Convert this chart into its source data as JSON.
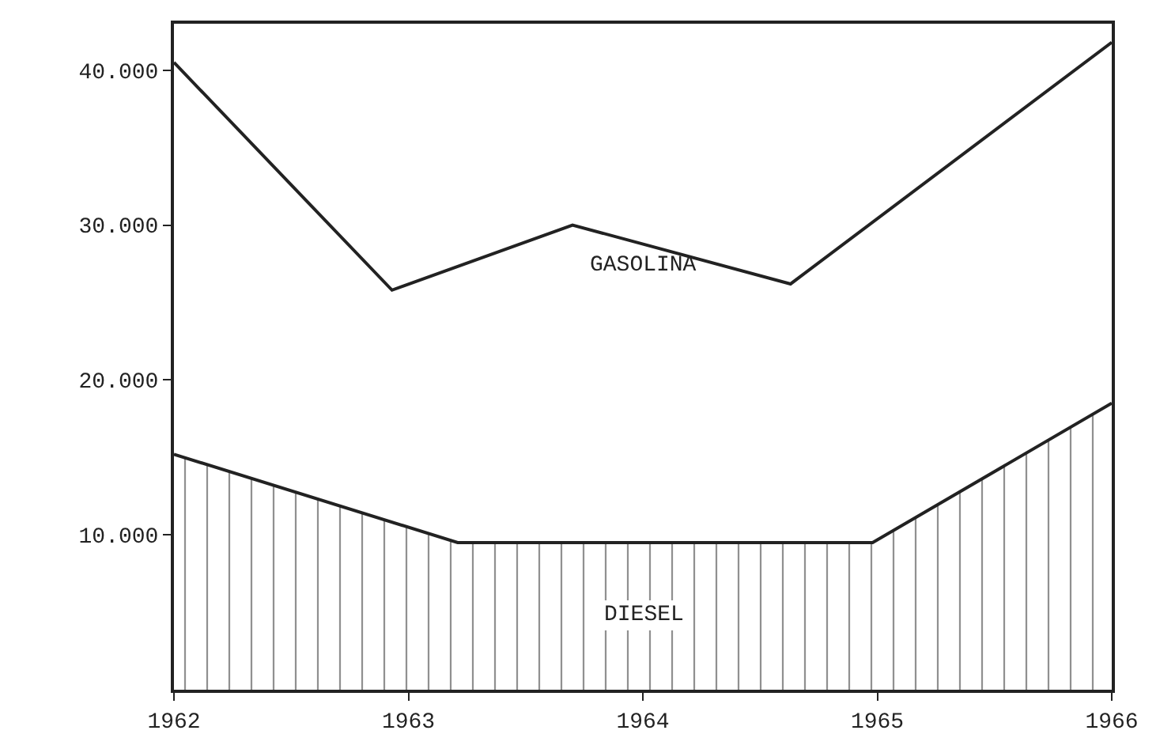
{
  "chart_data": {
    "type": "line",
    "xlim": [
      1962,
      1966
    ],
    "ylim": [
      0,
      43000
    ],
    "xticks": [
      1962,
      1963,
      1964,
      1965,
      1966
    ],
    "yticks": [
      {
        "value": 10000,
        "label": "10.000"
      },
      {
        "value": 20000,
        "label": "20.000"
      },
      {
        "value": 30000,
        "label": "30.000"
      },
      {
        "value": 40000,
        "label": "40.000"
      }
    ],
    "legend": false,
    "marker": "none",
    "line_style": "solid",
    "series": [
      {
        "name": "GASOLINA",
        "color": "#222222",
        "x": [
          1962,
          1962.93,
          1963.7,
          1964.63,
          1966
        ],
        "values": [
          40500,
          25800,
          30000,
          26200,
          41800
        ]
      },
      {
        "name": "DIESEL",
        "type": "area",
        "color": "#222222",
        "x": [
          1962,
          1963.21,
          1964.98,
          1966
        ],
        "values": [
          15200,
          9500,
          9500,
          18500
        ]
      }
    ]
  }
}
